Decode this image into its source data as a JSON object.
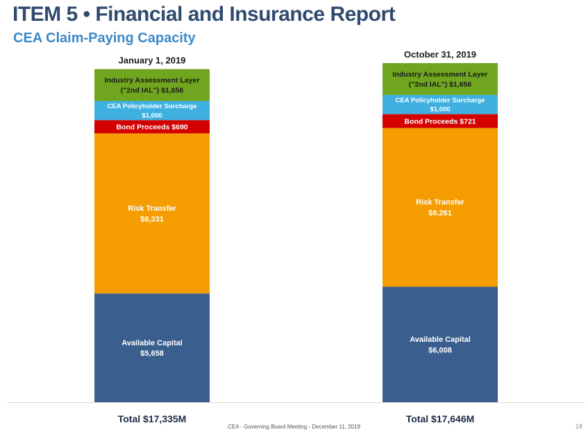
{
  "slide": {
    "title": "ITEM 5 • Financial and Insurance Report",
    "subtitle": "CEA Claim-Paying Capacity",
    "footer": "CEA - Governing Board Meeting - December 11, 2019",
    "page_number": "18"
  },
  "chart_data": {
    "type": "bar",
    "stacked": true,
    "categories": [
      "January 1, 2019",
      "October 31, 2019"
    ],
    "totals_labels": [
      "Total $17,335M",
      "Total $17,646M"
    ],
    "series": [
      {
        "name": "Available Capital",
        "color": "#3a5f8f",
        "values": [
          5658,
          6008
        ],
        "labels": [
          [
            "Available Capital",
            "$5,658"
          ],
          [
            "Available Capital",
            "$6,008"
          ]
        ]
      },
      {
        "name": "Risk Transfer",
        "color": "#f59c00",
        "values": [
          8331,
          8261
        ],
        "labels": [
          [
            "Risk Transfer",
            "$8,331"
          ],
          [
            "Risk Transfer",
            "$8,261"
          ]
        ]
      },
      {
        "name": "Bond Proceeds",
        "color": "#d40000",
        "values": [
          690,
          721
        ],
        "labels": [
          [
            "Bond Proceeds $690"
          ],
          [
            "Bond Proceeds $721"
          ]
        ]
      },
      {
        "name": "CEA Policyholder Surcharge",
        "color": "#3fb0e0",
        "values": [
          1000,
          1000
        ],
        "labels": [
          [
            "CEA Policyholder Surcharge",
            "$1,000"
          ],
          [
            "CEA Policyholder Surcharge",
            "$1,000"
          ]
        ]
      },
      {
        "name": "Industry Assessment Layer (\"2nd IAL\")",
        "color": "#70a520",
        "values": [
          1656,
          1656
        ],
        "labels": [
          [
            "Industry Assessment Layer",
            "(\"2nd IAL\") $1,656"
          ],
          [
            "Industry Assessment Layer",
            "(\"2nd IAL\") $1,656"
          ]
        ]
      }
    ],
    "ylim": [
      0,
      17646
    ],
    "grid": false,
    "legend": "none"
  }
}
